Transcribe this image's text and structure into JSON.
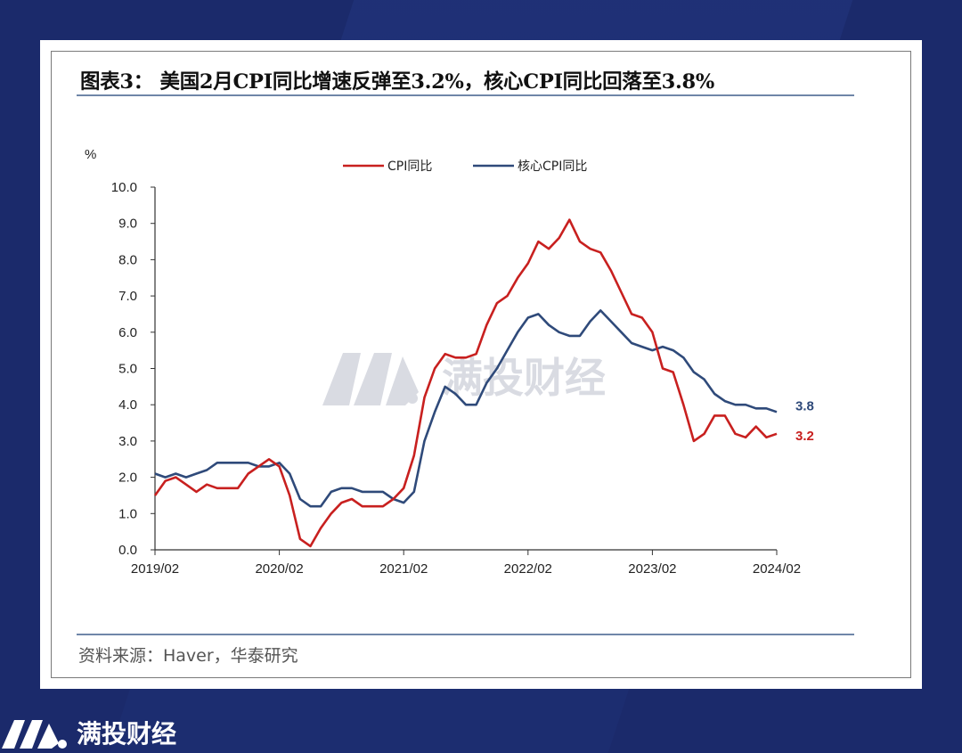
{
  "title": "图表3： 美国2月CPI同比增速反弹至3.2%，核心CPI同比回落至3.8%",
  "source": "资料来源：Haver，华泰研究",
  "watermark": "满投财经",
  "brand": {
    "name": "满投财经"
  },
  "colors": {
    "cpi": "#c8201f",
    "core": "#2f4a7a"
  },
  "chart_data": {
    "type": "line",
    "ylabel": "%",
    "ylim": [
      0,
      10
    ],
    "yticks": [
      "0.0",
      "1.0",
      "2.0",
      "3.0",
      "4.0",
      "5.0",
      "6.0",
      "7.0",
      "8.0",
      "9.0",
      "10.0"
    ],
    "xticks": [
      "2019/02",
      "2020/02",
      "2021/02",
      "2022/02",
      "2023/02",
      "2024/02"
    ],
    "legend_position": "top-center",
    "x_start": "2019-02",
    "series": [
      {
        "name": "CPI同比",
        "color": "#c8201f",
        "end_label": "3.2",
        "values": [
          1.5,
          1.9,
          2.0,
          1.8,
          1.6,
          1.8,
          1.7,
          1.7,
          1.7,
          2.1,
          2.3,
          2.5,
          2.3,
          1.5,
          0.3,
          0.1,
          0.6,
          1.0,
          1.3,
          1.4,
          1.2,
          1.2,
          1.2,
          1.4,
          1.7,
          2.6,
          4.2,
          5.0,
          5.4,
          5.3,
          5.3,
          5.4,
          6.2,
          6.8,
          7.0,
          7.5,
          7.9,
          8.5,
          8.3,
          8.6,
          9.1,
          8.5,
          8.3,
          8.2,
          7.7,
          7.1,
          6.5,
          6.4,
          6.0,
          5.0,
          4.9,
          4.0,
          3.0,
          3.2,
          3.7,
          3.7,
          3.2,
          3.1,
          3.4,
          3.1,
          3.2
        ]
      },
      {
        "name": "核心CPI同比",
        "color": "#2f4a7a",
        "end_label": "3.8",
        "values": [
          2.1,
          2.0,
          2.1,
          2.0,
          2.1,
          2.2,
          2.4,
          2.4,
          2.4,
          2.4,
          2.3,
          2.3,
          2.4,
          2.1,
          1.4,
          1.2,
          1.2,
          1.6,
          1.7,
          1.7,
          1.6,
          1.6,
          1.6,
          1.4,
          1.3,
          1.6,
          3.0,
          3.8,
          4.5,
          4.3,
          4.0,
          4.0,
          4.6,
          5.0,
          5.5,
          6.0,
          6.4,
          6.5,
          6.2,
          6.0,
          5.9,
          5.9,
          6.3,
          6.6,
          6.3,
          6.0,
          5.7,
          5.6,
          5.5,
          5.6,
          5.5,
          5.3,
          4.9,
          4.7,
          4.3,
          4.1,
          4.0,
          4.0,
          3.9,
          3.9,
          3.8
        ]
      }
    ]
  }
}
